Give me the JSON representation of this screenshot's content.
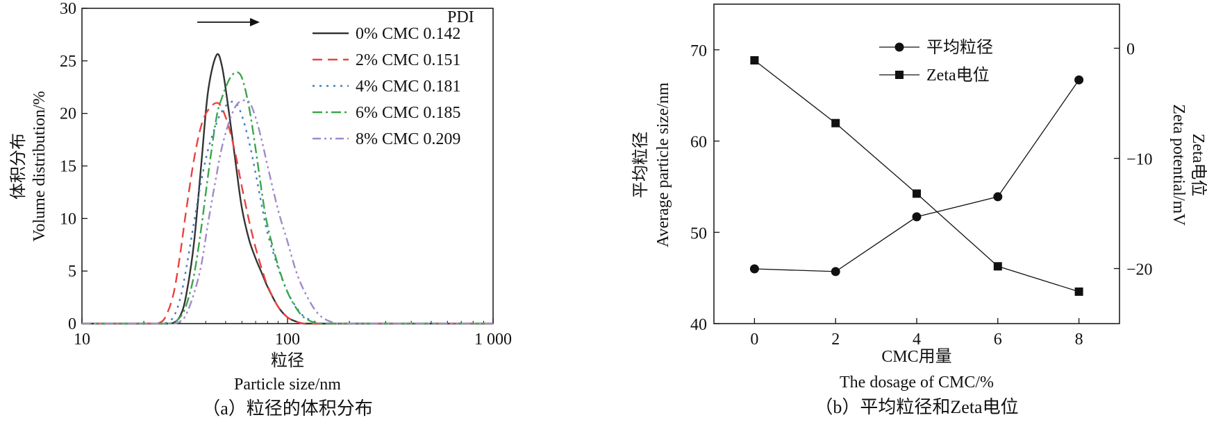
{
  "chart_data": [
    {
      "type": "line",
      "panel_caption": "（a）粒径的体积分布",
      "xlabel_cn": "粒径",
      "xlabel_en": "Particle size/nm",
      "ylabel_cn": "体积分布",
      "ylabel_en": "Volume distribution/%",
      "x_scale": "log",
      "xlim": [
        10,
        1000
      ],
      "ylim": [
        0,
        30
      ],
      "x_ticks": [
        10,
        100,
        1000
      ],
      "x_tick_labels": [
        "10",
        "100",
        "1 000"
      ],
      "y_ticks": [
        0,
        5,
        10,
        15,
        20,
        25,
        30
      ],
      "y_tick_labels": [
        "0",
        "5",
        "10",
        "15",
        "20",
        "25",
        "30"
      ],
      "legend_title": "PDI",
      "legend_position": "top-right",
      "arrow_direction": "right",
      "x": [
        10,
        20,
        24,
        26,
        28,
        30,
        32,
        35,
        38,
        41,
        45,
        48,
        52,
        56,
        60,
        65,
        70,
        75,
        80,
        90,
        100,
        110,
        120,
        135,
        150,
        175,
        200,
        300,
        500,
        1000
      ],
      "series": [
        {
          "name": "0% CMC 0.142",
          "color": "#333333",
          "dash": "solid",
          "values": [
            0,
            0,
            0,
            0,
            0.1,
            0.7,
            2.5,
            7.5,
            15,
            22,
            25.5,
            24.5,
            20,
            15.2,
            11,
            8,
            6.2,
            4.8,
            3.5,
            1.6,
            0.6,
            0.2,
            0,
            0,
            0,
            0,
            0,
            0,
            0,
            0
          ]
        },
        {
          "name": "2% CMC 0.151",
          "color": "#e8433f",
          "dash": "14,8",
          "values": [
            0,
            0,
            0.1,
            1,
            3,
            6.5,
            10.5,
            15.5,
            18.8,
            20.3,
            21,
            20.5,
            18.6,
            16,
            13,
            9.8,
            7.2,
            5.2,
            3.6,
            1.6,
            0.6,
            0.2,
            0,
            0,
            0,
            0,
            0,
            0,
            0,
            0
          ]
        },
        {
          "name": "4% CMC 0.181",
          "color": "#3c7ec6",
          "dash": "3,7",
          "values": [
            0,
            0,
            0,
            0.1,
            0.7,
            2.3,
            5,
            9.5,
            13.5,
            16.5,
            19,
            20.2,
            21,
            21,
            19.8,
            17.3,
            14.3,
            11.2,
            8.6,
            5.3,
            3,
            1.6,
            0.7,
            0.2,
            0,
            0,
            0,
            0,
            0,
            0
          ]
        },
        {
          "name": "6% CMC 0.185",
          "color": "#3ba64a",
          "dash": "14,5,3,5",
          "values": [
            0,
            0,
            0,
            0,
            0.1,
            0.6,
            1.6,
            4.5,
            9,
            14,
            19.5,
            21.5,
            23.2,
            23.9,
            23.4,
            20.6,
            16.6,
            12.5,
            9.3,
            5.5,
            3,
            1.5,
            0.6,
            0.1,
            0,
            0,
            0,
            0,
            0,
            0
          ]
        },
        {
          "name": "8% CMC 0.209",
          "color": "#a08ac9",
          "dash": "12,5,3,5,3,5",
          "values": [
            0,
            0,
            0,
            0,
            0,
            0.2,
            0.8,
            2.8,
            5.5,
            9.5,
            14,
            16.8,
            19.2,
            20.7,
            21.2,
            21.1,
            19.6,
            17.4,
            15,
            10.8,
            7.8,
            5,
            3.2,
            1.4,
            0.5,
            0,
            0,
            0,
            0,
            0
          ]
        }
      ]
    },
    {
      "type": "line",
      "panel_caption": "（b）平均粒径和Zeta电位",
      "xlabel_cn": "CMC用量",
      "xlabel_en": "The dosage of CMC/%",
      "ylabel_cn": "平均粒径",
      "ylabel_en": "Average particle size/nm",
      "y2label_cn": "Zeta电位",
      "y2label_en": "Zeta potential/mV",
      "xlim": [
        -1,
        9
      ],
      "ylim": [
        40,
        75
      ],
      "y2lim": [
        -25,
        4
      ],
      "x_ticks": [
        0,
        2,
        4,
        6,
        8
      ],
      "x_tick_labels": [
        "0",
        "2",
        "4",
        "6",
        "8"
      ],
      "y_ticks": [
        40,
        50,
        60,
        70
      ],
      "y_tick_labels": [
        "40",
        "50",
        "60",
        "70"
      ],
      "y2_ticks": [
        -20,
        -10,
        0
      ],
      "y2_tick_labels": [
        "−20",
        "−10",
        "0"
      ],
      "legend_position": "top-center",
      "x": [
        0,
        2,
        4,
        6,
        8
      ],
      "series": [
        {
          "name": "平均粒径",
          "marker": "circle",
          "axis": "left",
          "color": "#111111",
          "values": [
            46,
            45.7,
            51.7,
            53.9,
            66.7
          ]
        },
        {
          "name": "Zeta电位",
          "marker": "square",
          "axis": "right",
          "color": "#111111",
          "values": [
            -1.1,
            -6.8,
            -13.2,
            -19.8,
            -22.1
          ]
        }
      ]
    }
  ]
}
